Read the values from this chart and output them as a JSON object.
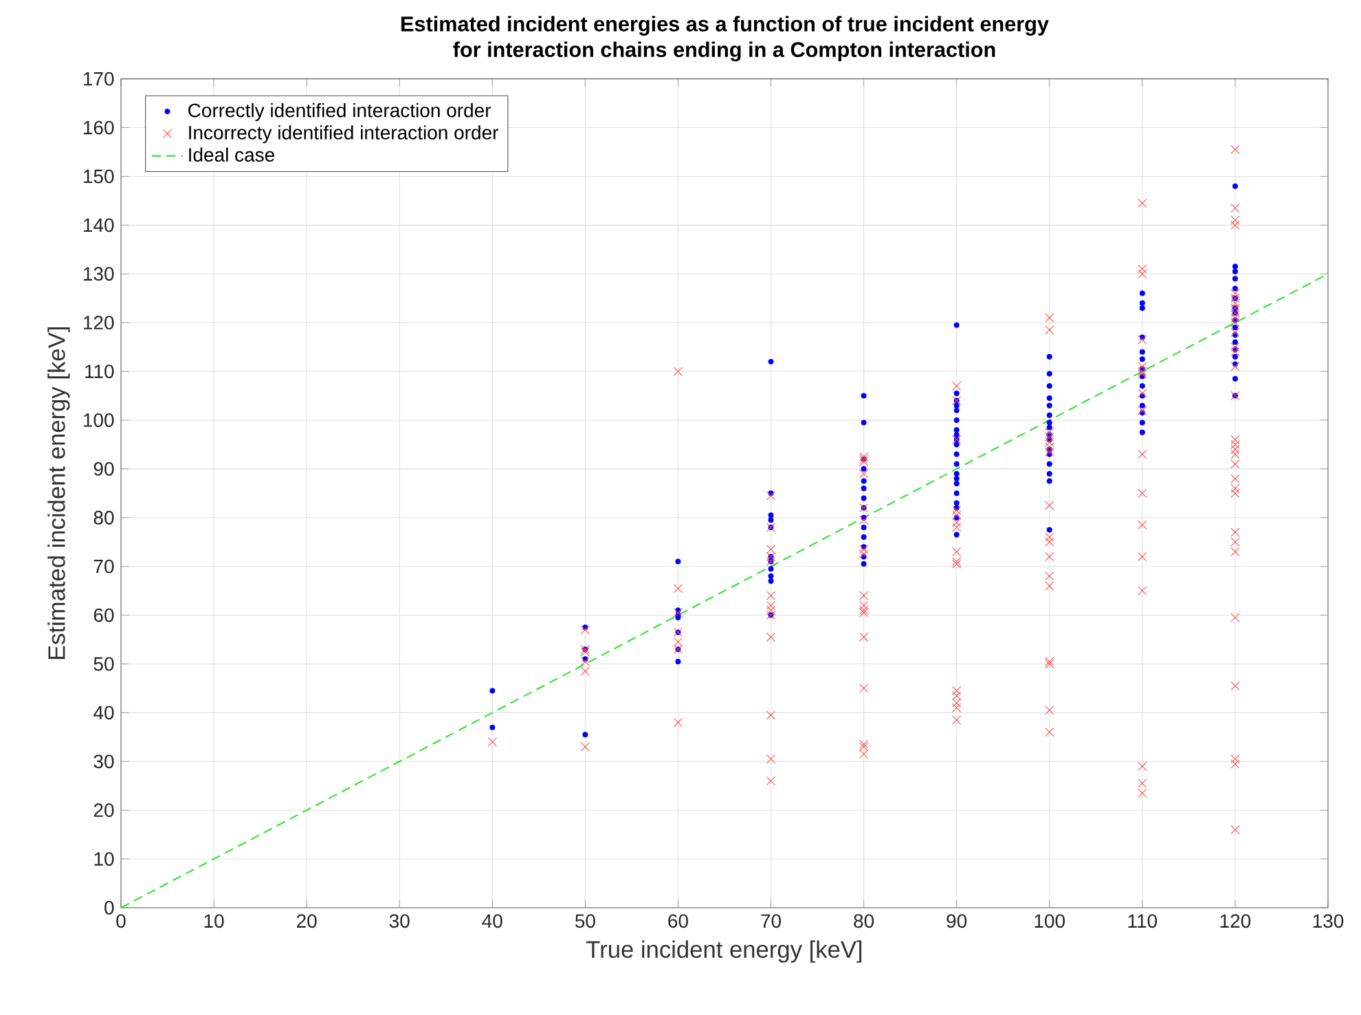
{
  "chart_data": {
    "type": "scatter",
    "title": "Estimated incident energies as a function of true incident energy",
    "subtitle": "for interaction chains ending in a Compton interaction",
    "xlabel": "True incident energy [keV]",
    "ylabel": "Estimated incident energy [keV]",
    "xlim": [
      0,
      130
    ],
    "ylim": [
      0,
      170
    ],
    "xticks": [
      0,
      10,
      20,
      30,
      40,
      50,
      60,
      70,
      80,
      90,
      100,
      110,
      120,
      130
    ],
    "yticks": [
      0,
      10,
      20,
      30,
      40,
      50,
      60,
      70,
      80,
      90,
      100,
      110,
      120,
      130,
      140,
      150,
      160,
      170
    ],
    "grid": true,
    "legend": "top left",
    "series": [
      {
        "name": "Correctly identified interaction order",
        "type": "scatter",
        "marker": "circle",
        "color": "#0000ff",
        "x": [
          40,
          40,
          50,
          50,
          50,
          50,
          60,
          60,
          60,
          60,
          60,
          60,
          60,
          70,
          70,
          70,
          70,
          70,
          70,
          70,
          70,
          70,
          70,
          70,
          80,
          80,
          80,
          80,
          80,
          80,
          80,
          80,
          80,
          80,
          80,
          80,
          80,
          80,
          90,
          90,
          90,
          90,
          90,
          90,
          90,
          90,
          90,
          90,
          90,
          90,
          90,
          90,
          90,
          90,
          90,
          90,
          90,
          90,
          100,
          100,
          100,
          100,
          100,
          100,
          100,
          100,
          100,
          100,
          100,
          100,
          100,
          100,
          100,
          100,
          110,
          110,
          110,
          110,
          110,
          110,
          110,
          110,
          110,
          110,
          110,
          110,
          110,
          110,
          120,
          120,
          120,
          120,
          120,
          120,
          120,
          120,
          120,
          120,
          120,
          120,
          120,
          120,
          120,
          120,
          120
        ],
        "values": [
          44.5,
          37,
          57.5,
          53,
          51,
          35.5,
          71,
          61,
          60,
          59.5,
          56.5,
          53,
          50.5,
          112,
          85,
          80.5,
          79.5,
          78,
          72,
          71,
          69.5,
          68,
          67,
          60,
          105,
          99.5,
          92,
          90,
          87.5,
          86,
          84,
          82,
          80,
          78,
          76,
          74,
          72,
          70.5,
          119.5,
          105.5,
          104,
          103,
          102,
          100,
          98,
          97,
          96,
          95,
          93,
          91,
          89,
          88,
          87,
          85,
          83,
          82,
          80,
          76.5,
          113,
          109.5,
          107,
          104.5,
          103,
          101,
          99.5,
          98.5,
          97,
          96,
          94,
          93,
          91,
          89,
          87.5,
          77.5,
          126,
          124,
          123,
          117,
          114,
          112.5,
          110.5,
          109,
          107,
          105,
          103,
          101.5,
          99.5,
          97.5,
          148,
          131.5,
          130.5,
          129,
          127,
          125,
          123,
          122,
          120.5,
          119,
          117.5,
          116,
          114.5,
          113,
          111.5,
          108.5,
          105
        ]
      },
      {
        "name": "Incorrecty identified interaction order",
        "type": "scatter",
        "marker": "cross",
        "color": "#ff4d4d",
        "x": [
          40,
          50,
          50,
          50,
          50,
          50,
          50,
          60,
          60,
          60,
          60,
          60,
          60,
          60,
          70,
          70,
          70,
          70,
          70,
          70,
          70,
          70,
          70,
          70,
          70,
          70,
          70,
          80,
          80,
          80,
          80,
          80,
          80,
          80,
          80,
          80,
          80,
          80,
          80,
          80,
          80,
          80,
          80,
          80,
          90,
          90,
          90,
          90,
          90,
          90,
          90,
          90,
          90,
          90,
          90,
          90,
          90,
          90,
          90,
          100,
          100,
          100,
          100,
          100,
          100,
          100,
          100,
          100,
          100,
          100,
          100,
          100,
          100,
          100,
          100,
          100,
          110,
          110,
          110,
          110,
          110,
          110,
          110,
          110,
          110,
          110,
          110,
          110,
          110,
          110,
          110,
          110,
          110,
          120,
          120,
          120,
          120,
          120,
          120,
          120,
          120,
          120,
          120,
          120,
          120,
          120,
          120,
          120,
          120,
          120,
          120,
          120,
          120,
          120,
          120,
          120,
          120,
          120,
          120,
          120,
          120,
          120,
          120,
          120,
          120
        ],
        "values": [
          34,
          57,
          53,
          52.5,
          50.5,
          48.5,
          33,
          110,
          65.5,
          60.5,
          56.5,
          54.5,
          53,
          38,
          84.5,
          78,
          73.5,
          72,
          71,
          64,
          62,
          61,
          60,
          55.5,
          39.5,
          30.5,
          26,
          92.5,
          92,
          91.5,
          89,
          82,
          79.5,
          73.5,
          72.5,
          64,
          62,
          61,
          60.5,
          55.5,
          45,
          33.5,
          33,
          31.5,
          107,
          104,
          96,
          81.5,
          80.5,
          79,
          78,
          73,
          71,
          70.5,
          44.5,
          43.5,
          42,
          41,
          38.5,
          121,
          118.5,
          97.5,
          96.5,
          95.5,
          94.5,
          93.5,
          82.5,
          76,
          75,
          72,
          68,
          66,
          50.5,
          50,
          40.5,
          36,
          144.5,
          131,
          130,
          116.5,
          111,
          110,
          109.5,
          105.5,
          102,
          93,
          85,
          78.5,
          72,
          65,
          29,
          25.5,
          23.5,
          155.5,
          143.5,
          141,
          140,
          126,
          125,
          124,
          123,
          122,
          121,
          120,
          118,
          115,
          114,
          111,
          105,
          96,
          95,
          94,
          93,
          91,
          88,
          86,
          85,
          77,
          75,
          73,
          59.5,
          45.5,
          30.5,
          29.5,
          16
        ]
      },
      {
        "name": "Ideal case",
        "type": "line",
        "marker": "none",
        "line_style": "dashed",
        "color": "#33e633",
        "x": [
          0,
          130
        ],
        "values": [
          0,
          130
        ]
      }
    ]
  }
}
